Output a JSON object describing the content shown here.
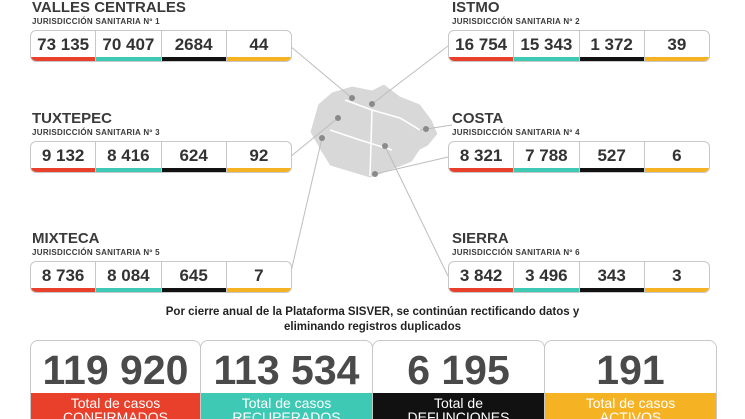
{
  "regions": [
    {
      "name": "VALLES CENTRALES",
      "subtitle": "JURISDICCIÓN SANITARIA Nº 1",
      "values": [
        "73 135",
        "70 407",
        "2684",
        "44"
      ]
    },
    {
      "name": "ISTMO",
      "subtitle": "JURISDICCIÓN SANITARIA Nº 2",
      "values": [
        "16 754",
        "15 343",
        "1 372",
        "39"
      ]
    },
    {
      "name": "TUXTEPEC",
      "subtitle": "JURISDICCIÓN SANITARIA Nº 3",
      "values": [
        "9 132",
        "8 416",
        "624",
        "92"
      ]
    },
    {
      "name": "COSTA",
      "subtitle": "JURISDICCIÓN SANITARIA Nº 4",
      "values": [
        "8 321",
        "7 788",
        "527",
        "6"
      ]
    },
    {
      "name": "MIXTECA",
      "subtitle": "JURISDICCIÓN SANITARIA Nº 5",
      "values": [
        "8 736",
        "8 084",
        "645",
        "7"
      ]
    },
    {
      "name": "SIERRA",
      "subtitle": "JURISDICCIÓN SANITARIA Nº 6",
      "values": [
        "3 842",
        "3 496",
        "343",
        "3"
      ]
    }
  ],
  "note": [
    "Por cierre anual de la Plataforma SISVER, se continúan rectificando datos y",
    "eliminando registros duplicados"
  ],
  "totals": [
    {
      "value": "119 920",
      "label": [
        "Total de casos",
        "CONFIRMADOS"
      ]
    },
    {
      "value": "113 534",
      "label": [
        "Total de casos",
        "RECUPERADOS"
      ]
    },
    {
      "value": "6 195",
      "label": [
        "Total de",
        "DEFUNCIONES"
      ]
    },
    {
      "value": "191",
      "label": [
        "Total de casos",
        "ACTIVOS"
      ]
    }
  ]
}
